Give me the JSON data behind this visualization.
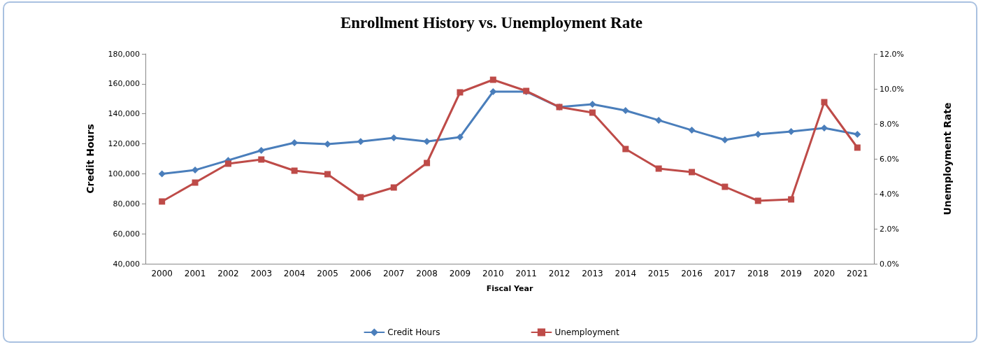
{
  "chart_data": {
    "type": "line",
    "title": "Enrollment History vs. Unemployment Rate",
    "xlabel": "Fiscal Year",
    "ylabel": "Credit Hours",
    "y2label": "Unemployment Rate",
    "categories": [
      "2000",
      "2001",
      "2002",
      "2003",
      "2004",
      "2005",
      "2006",
      "2007",
      "2008",
      "2009",
      "2010",
      "2011",
      "2012",
      "2013",
      "2014",
      "2015",
      "2016",
      "2017",
      "2018",
      "2019",
      "2020",
      "2021"
    ],
    "series": [
      {
        "name": "Credit Hours",
        "color": "#4a7ebb",
        "marker": "diamond",
        "values": [
          100000,
          102500,
          109000,
          115600,
          120700,
          119800,
          121500,
          124000,
          121600,
          124500,
          154800,
          154800,
          144500,
          146400,
          142200,
          135700,
          129100,
          122600,
          126300,
          128200,
          130500,
          126300
        ]
      },
      {
        "name": "Unemployment",
        "color": "#be4b48",
        "marker": "square",
        "axis": "y2",
        "values": [
          3.56,
          4.64,
          5.72,
          5.96,
          5.32,
          5.12,
          3.8,
          4.36,
          5.76,
          9.8,
          10.52,
          9.88,
          8.96,
          8.64,
          6.56,
          5.44,
          5.24,
          4.4,
          3.6,
          3.68,
          9.24,
          6.64
        ]
      }
    ],
    "ylim": [
      40000,
      180000
    ],
    "yticks": [
      {
        "value": 40000,
        "label": "40,000"
      },
      {
        "value": 60000,
        "label": "60,000"
      },
      {
        "value": 80000,
        "label": "80,000"
      },
      {
        "value": 100000,
        "label": "100,000"
      },
      {
        "value": 120000,
        "label": "120,000"
      },
      {
        "value": 140000,
        "label": "140,000"
      },
      {
        "value": 160000,
        "label": "160,000"
      },
      {
        "value": 180000,
        "label": "180,000"
      }
    ],
    "y2lim": [
      0,
      12
    ],
    "y2ticks": [
      {
        "value": 0,
        "label": "0.0%"
      },
      {
        "value": 2,
        "label": "2.0%"
      },
      {
        "value": 4,
        "label": "4.0%"
      },
      {
        "value": 6,
        "label": "6.0%"
      },
      {
        "value": 8,
        "label": "8.0%"
      },
      {
        "value": 10,
        "label": "10.0%"
      },
      {
        "value": 12,
        "label": "12.0%"
      }
    ],
    "grid": false,
    "legend": "bottom",
    "line_style": "solid"
  }
}
